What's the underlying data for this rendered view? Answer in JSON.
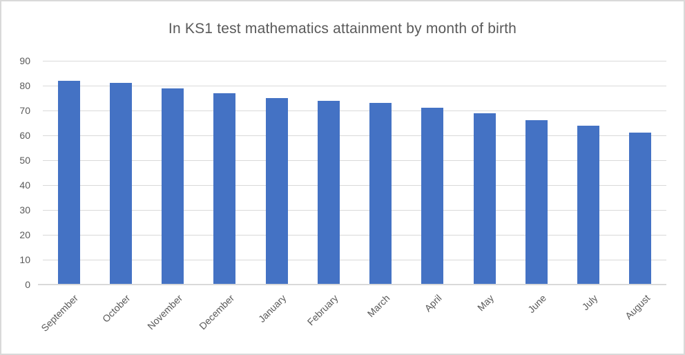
{
  "chart_data": {
    "type": "bar",
    "title": "In KS1 test mathematics attainment by month of birth",
    "categories": [
      "September",
      "October",
      "November",
      "December",
      "January",
      "February",
      "March",
      "April",
      "May",
      "June",
      "July",
      "August"
    ],
    "values": [
      82,
      81,
      79,
      77,
      75,
      74,
      73,
      71,
      69,
      66,
      64,
      61
    ],
    "xlabel": "",
    "ylabel": "",
    "ylim": [
      0,
      90
    ],
    "ytick_step": 10,
    "grid": "horizontal",
    "legend": "none",
    "colors": {
      "bar": "#4472c4",
      "gridline": "#d9d9d9",
      "axis_line": "#d9d9d9",
      "text": "#595959",
      "frame_border": "#d9d9d9",
      "background": "#ffffff"
    }
  }
}
